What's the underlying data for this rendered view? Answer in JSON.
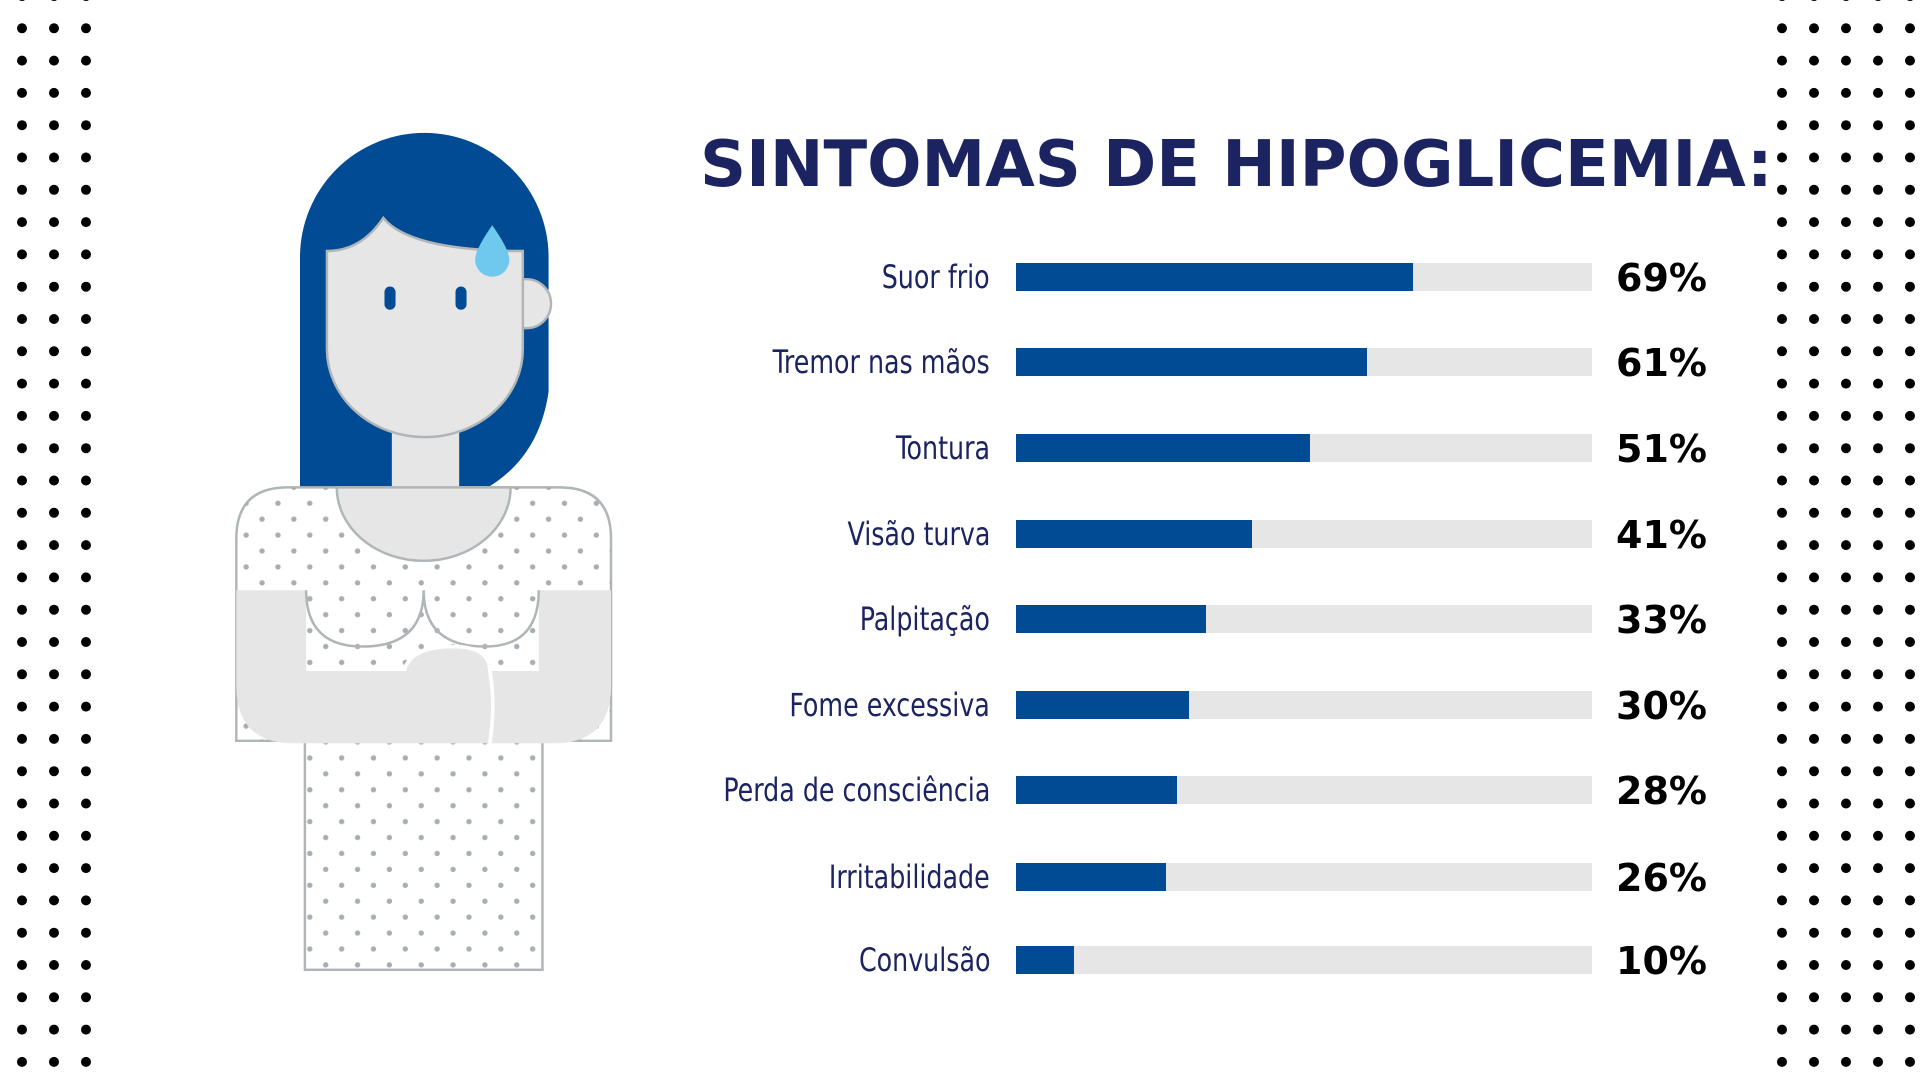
{
  "chart_data": {
    "type": "bar",
    "orientation": "horizontal",
    "title": "SINTOMAS DE HIPOGLICEMIA:",
    "categories": [
      "Suor frio",
      "Tremor nas mãos",
      "Tontura",
      "Visão turva",
      "Palpitação",
      "Fome excessiva",
      "Perda de consciência",
      "Irritabilidade",
      "Convulsão"
    ],
    "values": [
      69,
      61,
      51,
      41,
      33,
      30,
      28,
      26,
      10
    ],
    "value_labels": [
      "69%",
      "61%",
      "51%",
      "41%",
      "33%",
      "30%",
      "28%",
      "26%",
      "10%"
    ],
    "xlim": [
      0,
      100
    ],
    "unit": "%",
    "grid": false,
    "colors": {
      "bar": "#004b93",
      "track": "#e6e6e6",
      "title": "#1b2361",
      "label": "#1b2361",
      "value": "#000000"
    }
  },
  "illustration": {
    "icon": "sweating-woman-icon",
    "hair_color": "#004b93",
    "sweat_color": "#6fc8ee"
  }
}
